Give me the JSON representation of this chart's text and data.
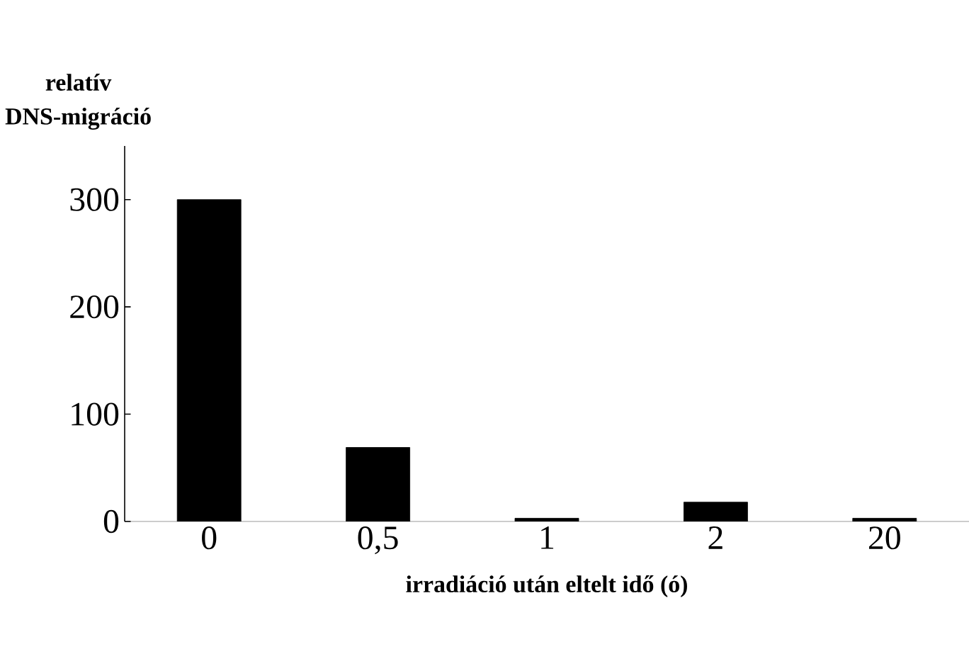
{
  "chart_data": {
    "type": "bar",
    "ylabel": "relatív DNS-migráció",
    "xlabel": "irradiáció után eltelt idő (ó)",
    "categories": [
      "0",
      "0,5",
      "1",
      "2",
      "20"
    ],
    "values": [
      300,
      69,
      3,
      18,
      3
    ],
    "color": "#000000",
    "ylim": [
      0,
      350
    ],
    "yticks": [
      0,
      100,
      200,
      300
    ],
    "grid": false
  }
}
